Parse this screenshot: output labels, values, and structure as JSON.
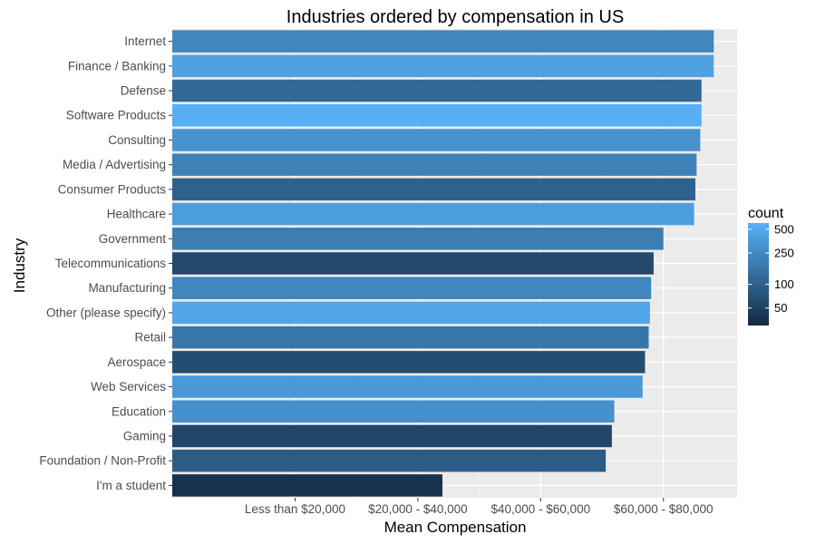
{
  "chart_data": {
    "type": "bar",
    "orientation": "horizontal",
    "title": "Industries ordered by compensation in US",
    "xlabel": "Mean Compensation",
    "ylabel": "Industry",
    "x_tick_labels": [
      "Less than $20,000",
      "$20,000 - $40,000",
      "$40,000 - $60,000",
      "$60,000 - $80,000"
    ],
    "x_tick_values": [
      1,
      2,
      3,
      4
    ],
    "xlim": [
      0.0,
      4.6
    ],
    "grid": true,
    "legend_position": "right",
    "categories": [
      "Internet",
      "Finance / Banking",
      "Defense",
      "Software Products",
      "Consulting",
      "Media / Advertising",
      "Consumer Products",
      "Healthcare",
      "Government",
      "Telecommunications",
      "Manufacturing",
      "Other (please specify)",
      "Retail",
      "Aerospace",
      "Web Services",
      "Education",
      "Gaming",
      "Foundation / Non-Profit",
      "I'm a student"
    ],
    "values": [
      4.41,
      4.41,
      4.31,
      4.31,
      4.3,
      4.27,
      4.26,
      4.25,
      4.0,
      3.92,
      3.9,
      3.89,
      3.88,
      3.85,
      3.83,
      3.6,
      3.58,
      3.53,
      2.2
    ],
    "counts": [
      230,
      420,
      120,
      580,
      300,
      210,
      100,
      380,
      190,
      60,
      230,
      470,
      160,
      65,
      350,
      290,
      55,
      90,
      35
    ],
    "legend": {
      "title": "count",
      "breaks": [
        50,
        100,
        250,
        500
      ],
      "labels": [
        "50",
        "100",
        "250",
        "500"
      ],
      "min": 30,
      "max": 600
    },
    "colors": {
      "low": "#132b43",
      "high": "#56b1f7",
      "panel": "#ebebeb",
      "grid_major": "#ffffff",
      "grid_minor": "#f5f5f5",
      "tick": "#333333"
    }
  }
}
